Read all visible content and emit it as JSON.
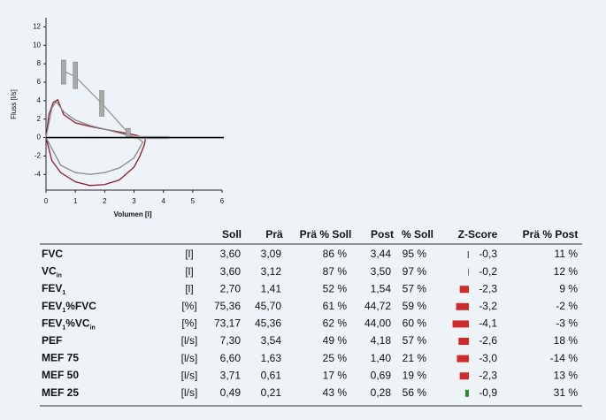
{
  "chart_data": {
    "type": "line",
    "y_label": "Fluss [l/s]",
    "x_label": "Volumen [l]",
    "xlim": [
      0,
      6
    ],
    "xticks": [
      0,
      1,
      2,
      3,
      4,
      5,
      6
    ],
    "ylim": [
      -5.7,
      13
    ],
    "yticks": [
      12,
      10,
      8,
      6,
      4,
      2,
      0,
      -2,
      -4
    ],
    "series": [
      {
        "color": "#8b1c2c",
        "x": [
          0,
          0.1,
          0.25,
          0.4,
          0.6,
          1,
          1.5,
          2,
          2.5,
          3,
          3.4,
          3.35,
          3.2,
          3,
          2.5,
          2,
          1.5,
          1,
          0.5,
          0.2,
          0
        ],
        "values": [
          0,
          2.5,
          3.8,
          4.1,
          2.5,
          1.6,
          1.2,
          0.9,
          0.6,
          0.3,
          0,
          -0.8,
          -2,
          -3.2,
          -4.6,
          -5.1,
          -5.2,
          -4.8,
          -3.8,
          -2.5,
          0
        ]
      },
      {
        "color": "#8a8a8a",
        "x": [
          0,
          0.2,
          0.35,
          0.6,
          1,
          1.5,
          2,
          2.5,
          3.1,
          3.3,
          3,
          2.5,
          2,
          1.5,
          1,
          0.5,
          0
        ],
        "values": [
          0,
          3.2,
          3.9,
          2.8,
          1.9,
          1.3,
          0.9,
          0.5,
          0,
          -0.5,
          -2.2,
          -3.3,
          -3.8,
          -4,
          -3.8,
          -3,
          0
        ]
      },
      {
        "color": "#9a9a9a",
        "x": [
          0.55,
          1,
          1.9,
          2.8
        ],
        "values": [
          7.3,
          6.6,
          3.7,
          0.5
        ]
      },
      {
        "color": "#c8c8c8",
        "x": [
          3,
          4.2
        ],
        "values": [
          0,
          0
        ]
      }
    ],
    "ranges": {
      "color": "#a8a8a8",
      "x": [
        0.6,
        1,
        1.9,
        2.8
      ],
      "low": [
        5.8,
        5.3,
        2.3,
        0
      ],
      "high": [
        8.4,
        8.2,
        5.1,
        1
      ]
    }
  },
  "table": {
    "header": [
      "Soll",
      "Prä",
      "Prä % Soll",
      "Post",
      "% Soll",
      "Z-Score",
      "Prä % Post"
    ],
    "rows": [
      {
        "label": [
          "FVC"
        ],
        "unit": "[l]",
        "cells": [
          "3,60",
          "3,09",
          "86 %",
          "3,44",
          "95 %",
          "-0,3",
          "11 %"
        ],
        "z": -0.3,
        "z_bar_color": "#6a6a6a",
        "z_text_color": "#333"
      },
      {
        "label": [
          "VC",
          "in"
        ],
        "unit": "[l]",
        "cells": [
          "3,60",
          "3,12",
          "87 %",
          "3,50",
          "97 %",
          "-0,2",
          "12 %"
        ],
        "z": -0.2,
        "z_bar_color": "#6a6a6a",
        "z_text_color": "#333"
      },
      {
        "label": [
          "FEV",
          "1"
        ],
        "unit": "[l]",
        "cells": [
          "2,70",
          "1,41",
          "52 %",
          "1,54",
          "57 %",
          "-2,3",
          "9 %"
        ],
        "z": -2.3,
        "z_bar_color": "#d02b2b",
        "z_text_color": "#8b1a1a"
      },
      {
        "label": [
          "FEV",
          "1",
          "%FVC"
        ],
        "unit": "[%]",
        "cells": [
          "75,36",
          "45,70",
          "61 %",
          "44,72",
          "59 %",
          "-3,2",
          "-2 %"
        ],
        "z": -3.2,
        "z_bar_color": "#d02b2b",
        "z_text_color": "#8b1a1a"
      },
      {
        "label": [
          "FEV",
          "1",
          "%VC",
          "in"
        ],
        "unit": "[%]",
        "cells": [
          "73,17",
          "45,36",
          "62 %",
          "44,00",
          "60 %",
          "-4,1",
          "-3 %"
        ],
        "z": -4.1,
        "z_bar_color": "#d02b2b",
        "z_text_color": "#8b1a1a"
      },
      {
        "label": [
          "PEF"
        ],
        "unit": "[l/s]",
        "cells": [
          "7,30",
          "3,54",
          "49 %",
          "4,18",
          "57 %",
          "-2,6",
          "18 %"
        ],
        "z": -2.6,
        "z_bar_color": "#d02b2b",
        "z_text_color": "#8b1a1a"
      },
      {
        "label": [
          "MEF 75"
        ],
        "unit": "[l/s]",
        "cells": [
          "6,60",
          "1,63",
          "25 %",
          "1,40",
          "21 %",
          "-3,0",
          "-14 %"
        ],
        "z": -3.0,
        "z_bar_color": "#d02b2b",
        "z_text_color": "#8b1a1a"
      },
      {
        "label": [
          "MEF 50"
        ],
        "unit": "[l/s]",
        "cells": [
          "3,71",
          "0,61",
          "17 %",
          "0,69",
          "19 %",
          "-2,3",
          "13 %"
        ],
        "z": -2.3,
        "z_bar_color": "#d02b2b",
        "z_text_color": "#8b1a1a"
      },
      {
        "label": [
          "MEF 25"
        ],
        "unit": "[l/s]",
        "cells": [
          "0,49",
          "0,21",
          "43 %",
          "0,28",
          "56 %",
          "-0,9",
          "31 %"
        ],
        "z": -0.9,
        "z_bar_color": "#2e8b2e",
        "z_text_color": "#333"
      }
    ]
  }
}
